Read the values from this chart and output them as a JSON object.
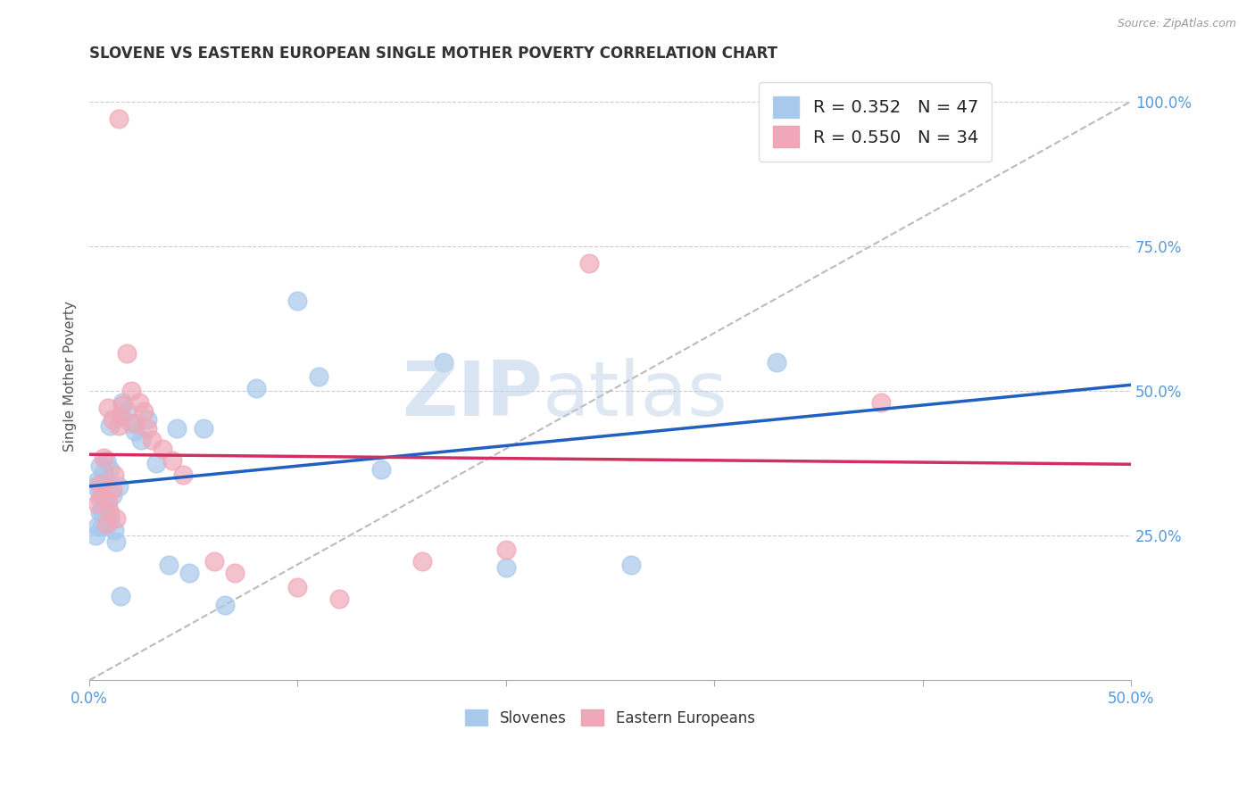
{
  "title": "SLOVENE VS EASTERN EUROPEAN SINGLE MOTHER POVERTY CORRELATION CHART",
  "source": "Source: ZipAtlas.com",
  "ylabel": "Single Mother Poverty",
  "xlim": [
    0.0,
    0.5
  ],
  "ylim": [
    0.0,
    1.05
  ],
  "slovene_R": 0.352,
  "slovene_N": 47,
  "eastern_R": 0.55,
  "eastern_N": 34,
  "blue_scatter_color": "#A8C8EC",
  "pink_scatter_color": "#F0A8B8",
  "blue_line_color": "#2060C0",
  "pink_line_color": "#D03060",
  "diag_color": "#BBBBBB",
  "legend_label1": "Slovenes",
  "legend_label2": "Eastern Europeans",
  "background_color": "#FFFFFF",
  "grid_color": "#CCCCCC",
  "axis_label_color": "#5599DD",
  "title_color": "#333333",
  "slovene_x": [
    0.003,
    0.004,
    0.005,
    0.005,
    0.005,
    0.005,
    0.006,
    0.006,
    0.007,
    0.007,
    0.007,
    0.008,
    0.008,
    0.009,
    0.009,
    0.01,
    0.01,
    0.011,
    0.012,
    0.013,
    0.014,
    0.015,
    0.016,
    0.018,
    0.02,
    0.022,
    0.025,
    0.028,
    0.032,
    0.038,
    0.042,
    0.048,
    0.055,
    0.065,
    0.08,
    0.1,
    0.11,
    0.14,
    0.17,
    0.2,
    0.26,
    0.33,
    0.003,
    0.004,
    0.006,
    0.01,
    0.015
  ],
  "slovene_y": [
    0.335,
    0.345,
    0.29,
    0.315,
    0.33,
    0.37,
    0.295,
    0.34,
    0.285,
    0.325,
    0.36,
    0.31,
    0.38,
    0.3,
    0.27,
    0.28,
    0.365,
    0.32,
    0.26,
    0.24,
    0.335,
    0.455,
    0.48,
    0.465,
    0.445,
    0.43,
    0.415,
    0.45,
    0.375,
    0.2,
    0.435,
    0.185,
    0.435,
    0.13,
    0.505,
    0.655,
    0.525,
    0.365,
    0.55,
    0.195,
    0.2,
    0.55,
    0.25,
    0.265,
    0.265,
    0.44,
    0.145
  ],
  "eastern_x": [
    0.004,
    0.005,
    0.006,
    0.007,
    0.008,
    0.009,
    0.01,
    0.011,
    0.012,
    0.013,
    0.014,
    0.015,
    0.016,
    0.018,
    0.02,
    0.022,
    0.024,
    0.026,
    0.028,
    0.03,
    0.035,
    0.04,
    0.045,
    0.06,
    0.07,
    0.1,
    0.12,
    0.16,
    0.2,
    0.24,
    0.38,
    0.009,
    0.011,
    0.014
  ],
  "eastern_y": [
    0.305,
    0.34,
    0.32,
    0.385,
    0.27,
    0.31,
    0.29,
    0.33,
    0.355,
    0.28,
    0.97,
    0.455,
    0.475,
    0.565,
    0.5,
    0.445,
    0.48,
    0.465,
    0.435,
    0.415,
    0.4,
    0.38,
    0.355,
    0.205,
    0.185,
    0.16,
    0.14,
    0.205,
    0.225,
    0.72,
    0.48,
    0.47,
    0.45,
    0.44
  ]
}
